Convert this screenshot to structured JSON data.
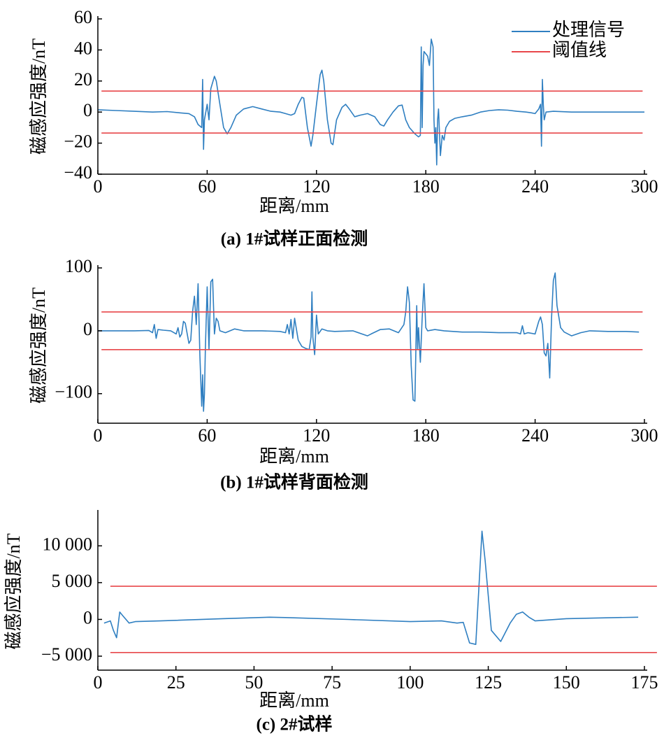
{
  "chart_data": [
    {
      "type": "line",
      "caption": "(a) 1#试样正面检测",
      "xlabel": "距离/mm",
      "ylabel": "磁感应强度/nT",
      "legend": "upper right",
      "xlim": [
        0,
        300
      ],
      "xticks": [
        0,
        60,
        120,
        180,
        240,
        300
      ],
      "ylim": [
        -40,
        60
      ],
      "yticks": [
        {
          "value": -40,
          "label": "−40"
        },
        {
          "value": -20,
          "label": "−20"
        },
        0,
        20,
        40,
        60
      ],
      "series": [
        {
          "name": "处理信号",
          "color": "#2f7fc1",
          "x": [
            0,
            10,
            20,
            30,
            38,
            45,
            50,
            53,
            55,
            57,
            57.5,
            58,
            58.5,
            60,
            61,
            62,
            64,
            65,
            67,
            69,
            71,
            73,
            76,
            80,
            85,
            90,
            95,
            100,
            103,
            106,
            108,
            110,
            112,
            113,
            115,
            117,
            118,
            120,
            122,
            123,
            124,
            126,
            128,
            129,
            131,
            134,
            136,
            138,
            141,
            144,
            148,
            152,
            155,
            157,
            159,
            162,
            165,
            167,
            169,
            171,
            174,
            176,
            177,
            177.5,
            178,
            178.5,
            179,
            181,
            182,
            183,
            184,
            184.5,
            185,
            185.5,
            186,
            186.5,
            187,
            188,
            189,
            190,
            191,
            193,
            196,
            200,
            205,
            210,
            215,
            220,
            225,
            230,
            235,
            238,
            240,
            242,
            243,
            243.5,
            244,
            244.5,
            245,
            246,
            250,
            260,
            270,
            280,
            290,
            300
          ],
          "values": [
            1.5,
            1,
            0.5,
            0,
            0.3,
            -0.5,
            -1,
            -3,
            -8,
            -10,
            21,
            -24,
            -5,
            5,
            -5,
            15,
            23,
            20,
            5,
            -10,
            -14,
            -10,
            -2,
            2,
            3.5,
            2,
            0.5,
            0,
            -1,
            -2,
            -1,
            5,
            9.5,
            9,
            -10,
            -22,
            -15,
            5,
            24,
            27,
            20,
            -5,
            -20,
            -21,
            -5,
            3,
            5,
            2,
            -3,
            -2,
            -1,
            -3,
            -8,
            -9,
            -5,
            0,
            4,
            4.5,
            -5,
            -10,
            -14,
            -16,
            -15,
            42,
            -10,
            30,
            39,
            36,
            30,
            47,
            42,
            -5,
            -20,
            -10,
            -34,
            -5,
            2,
            -28,
            -15,
            -18,
            -10,
            -6,
            -4,
            -3,
            -2,
            0,
            1,
            1.5,
            1.2,
            0.5,
            0,
            -0.5,
            -1,
            2,
            5,
            -22,
            21,
            5,
            -5,
            0,
            0.5,
            0,
            0,
            0,
            0,
            0
          ]
        },
        {
          "name": "阈值线",
          "color": "#e8474a",
          "x": [
            2,
            299
          ],
          "values": [
            13.5,
            13.5
          ]
        },
        {
          "color": "#e8474a",
          "x": [
            2,
            299
          ],
          "values": [
            -13.5,
            -13.5
          ]
        }
      ]
    },
    {
      "type": "line",
      "caption": "(b) 1#试样背面检测",
      "xlabel": "距离/mm",
      "ylabel": "磁感应强度/nT",
      "xlim": [
        0,
        300
      ],
      "xticks": [
        0,
        60,
        120,
        180,
        240,
        300
      ],
      "ylim": [
        -147,
        100
      ],
      "yticks": [
        {
          "value": -100,
          "label": "−100"
        },
        0,
        100
      ],
      "series": [
        {
          "color": "#2f7fc1",
          "x": [
            0,
            10,
            20,
            28,
            30,
            31,
            32,
            33,
            36,
            40,
            43,
            44,
            45,
            46,
            47,
            48,
            50,
            51,
            52,
            53,
            54,
            55,
            56,
            57,
            57.5,
            58,
            58.5,
            59,
            60,
            61,
            62,
            63,
            64,
            65,
            66,
            67,
            70,
            75,
            80,
            90,
            100,
            103,
            104,
            105,
            106,
            107,
            108,
            110,
            112,
            114,
            116,
            117,
            117.5,
            118,
            119,
            120,
            121,
            123,
            126,
            130,
            140,
            148,
            150,
            155,
            160,
            165,
            168,
            169,
            170,
            171,
            172,
            173,
            174,
            175,
            175.5,
            176,
            177,
            178,
            179,
            180,
            181,
            185,
            190,
            200,
            210,
            220,
            230,
            232,
            233,
            234,
            236,
            240,
            242,
            243,
            244,
            245,
            246,
            247,
            248,
            249,
            250,
            251,
            252,
            254,
            256,
            260,
            265,
            270,
            280,
            290,
            297
          ],
          "values": [
            0,
            0,
            0,
            0.5,
            -3,
            10,
            -12,
            2,
            1,
            0,
            -5,
            5,
            -10,
            -5,
            15,
            12,
            -20,
            -15,
            30,
            55,
            10,
            75,
            -40,
            -120,
            -70,
            -128,
            -100,
            -30,
            70,
            -30,
            78,
            82,
            -5,
            20,
            15,
            0,
            -3,
            3,
            0,
            0,
            -1,
            -3,
            10,
            -5,
            18,
            -12,
            20,
            -15,
            -25,
            -28,
            -30,
            -10,
            62,
            -10,
            -38,
            25,
            -5,
            3,
            0,
            -1,
            0,
            -8,
            -5,
            2,
            3,
            -3,
            10,
            30,
            70,
            45,
            -55,
            -110,
            -112,
            40,
            -30,
            5,
            -50,
            20,
            75,
            5,
            0,
            2,
            0,
            -2,
            -2,
            -3,
            -3,
            -5,
            8,
            -5,
            -3,
            -5,
            15,
            22,
            10,
            -35,
            -40,
            -20,
            -75,
            20,
            80,
            92,
            40,
            5,
            -2,
            -8,
            -3,
            0,
            -1,
            -1,
            -2
          ]
        },
        {
          "color": "#e8474a",
          "x": [
            2,
            299
          ],
          "values": [
            30,
            30
          ]
        },
        {
          "color": "#e8474a",
          "x": [
            2,
            299
          ],
          "values": [
            -30,
            -30
          ]
        }
      ]
    },
    {
      "type": "line",
      "caption": "(c) 2#试样",
      "xlabel": "距离/mm",
      "ylabel": "磁感应强度/nT",
      "xlim": [
        0,
        175
      ],
      "xticks": [
        0,
        25,
        50,
        75,
        100,
        125,
        150,
        175
      ],
      "ylim": [
        -6900,
        14500
      ],
      "yticks": [
        {
          "value": -5000,
          "label": "−5 000"
        },
        0,
        {
          "value": 5000,
          "label": "5 000"
        },
        {
          "value": 10000,
          "label": "10 000"
        }
      ],
      "series": [
        {
          "color": "#2f7fc1",
          "x": [
            2,
            4,
            5,
            6,
            7,
            8,
            10,
            12,
            20,
            40,
            55,
            60,
            80,
            100,
            110,
            115,
            117,
            119,
            121,
            123,
            124,
            126,
            129,
            132,
            134,
            136,
            138,
            140,
            150,
            160,
            173
          ],
          "values": [
            -500,
            -200,
            -1500,
            -2500,
            1000,
            500,
            -500,
            -300,
            -200,
            100,
            300,
            250,
            0,
            -300,
            -200,
            -500,
            -400,
            -3200,
            -3400,
            12000,
            8000,
            -1500,
            -3000,
            -500,
            700,
            1000,
            300,
            -200,
            100,
            200,
            300
          ]
        },
        {
          "color": "#e8474a",
          "x": [
            4,
            179
          ],
          "values": [
            4500,
            4500
          ]
        },
        {
          "color": "#e8474a",
          "x": [
            4,
            179
          ],
          "values": [
            -4500,
            -4500
          ]
        }
      ]
    }
  ]
}
